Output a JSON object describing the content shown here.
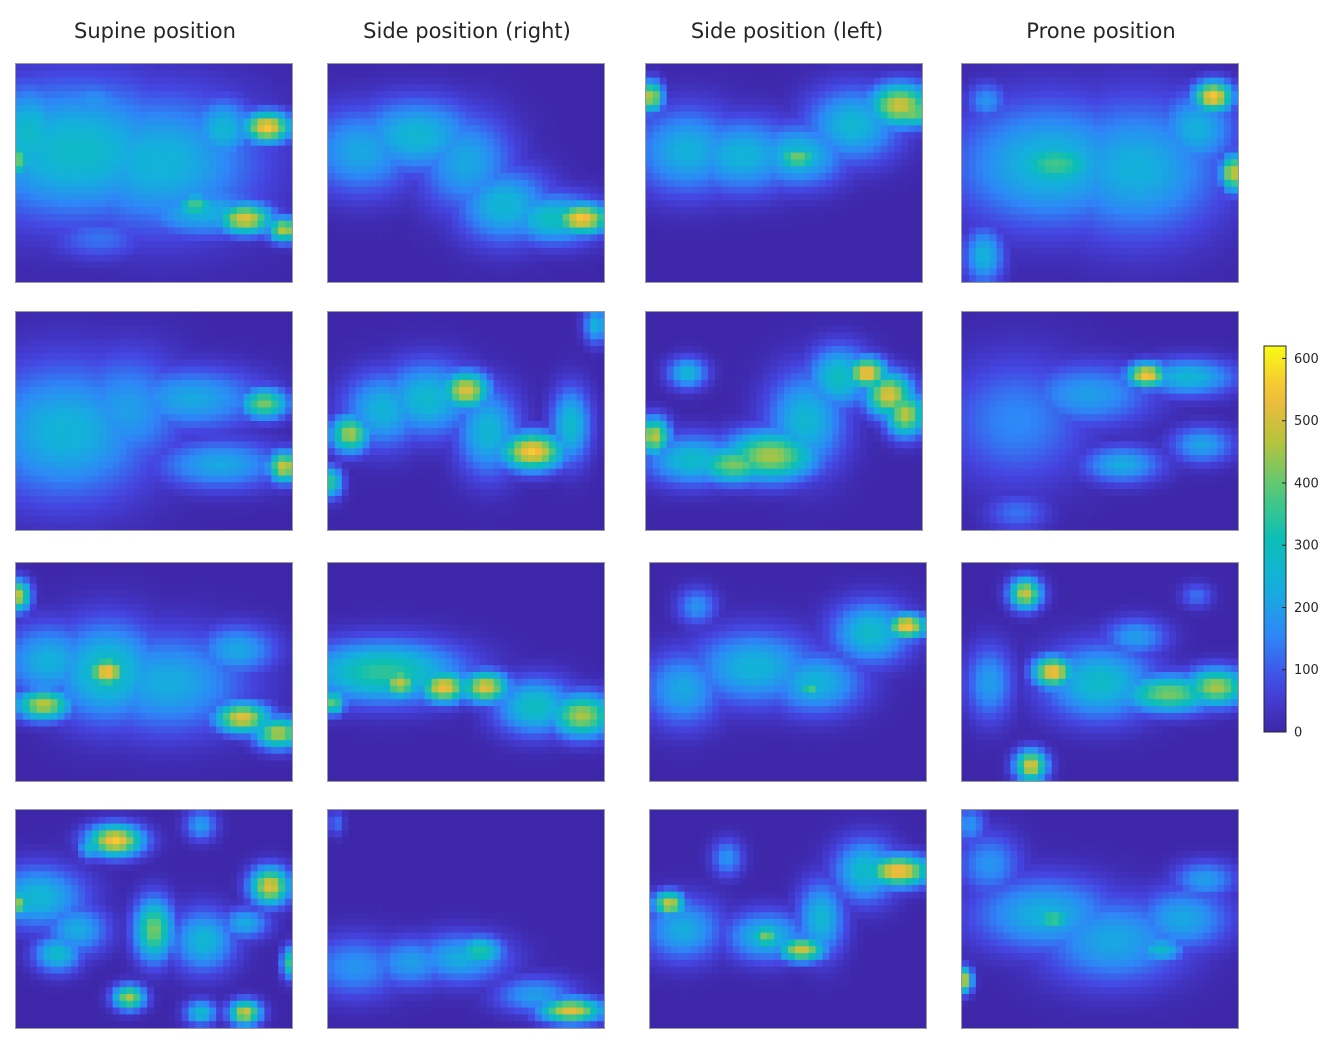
{
  "columns": [
    {
      "title": "Supine position"
    },
    {
      "title": "Side position (right)"
    },
    {
      "title": "Side position (left)"
    },
    {
      "title": "Prone position"
    }
  ],
  "chart_data": {
    "type": "heatmap",
    "colormap": "parula",
    "grid": "4 rows x 4 columns of pressure heatmaps",
    "colorbar": {
      "min": 0,
      "max": 620,
      "ticks": [
        0,
        100,
        200,
        300,
        400,
        500,
        600
      ],
      "tick_labels": [
        "0",
        "100",
        "200",
        "300",
        "400",
        "500",
        "600"
      ],
      "placement": "right"
    },
    "panels": [
      {
        "row": 1,
        "col": 1,
        "column_title": "Supine position",
        "base": 0,
        "blobs": [
          [
            0.28,
            0.18,
            0.1,
            0.08,
            180
          ],
          [
            0.05,
            0.32,
            0.1,
            0.16,
            280
          ],
          [
            0.22,
            0.4,
            0.28,
            0.22,
            280
          ],
          [
            0.52,
            0.45,
            0.25,
            0.22,
            250
          ],
          [
            0.75,
            0.3,
            0.08,
            0.1,
            260
          ],
          [
            0.91,
            0.29,
            0.06,
            0.05,
            560
          ],
          [
            0.68,
            0.68,
            0.16,
            0.08,
            240
          ],
          [
            0.83,
            0.71,
            0.07,
            0.05,
            520
          ],
          [
            0.97,
            0.76,
            0.04,
            0.04,
            480
          ],
          [
            0.65,
            0.65,
            0.05,
            0.04,
            380
          ],
          [
            0.3,
            0.8,
            0.12,
            0.07,
            130
          ],
          [
            0.0,
            0.44,
            0.04,
            0.06,
            420
          ]
        ]
      },
      {
        "row": 1,
        "col": 2,
        "column_title": "Side position (right)",
        "base": 0,
        "blobs": [
          [
            0.12,
            0.4,
            0.14,
            0.14,
            220
          ],
          [
            0.32,
            0.33,
            0.16,
            0.12,
            260
          ],
          [
            0.5,
            0.45,
            0.12,
            0.16,
            220
          ],
          [
            0.64,
            0.65,
            0.12,
            0.12,
            260
          ],
          [
            0.82,
            0.71,
            0.12,
            0.08,
            300
          ],
          [
            0.92,
            0.71,
            0.07,
            0.05,
            560
          ]
        ]
      },
      {
        "row": 1,
        "col": 3,
        "column_title": "Side position (left)",
        "base": 0,
        "blobs": [
          [
            0.02,
            0.15,
            0.03,
            0.05,
            480
          ],
          [
            0.15,
            0.4,
            0.14,
            0.14,
            240
          ],
          [
            0.35,
            0.42,
            0.15,
            0.12,
            250
          ],
          [
            0.55,
            0.42,
            0.12,
            0.1,
            270
          ],
          [
            0.55,
            0.43,
            0.06,
            0.04,
            420
          ],
          [
            0.75,
            0.28,
            0.12,
            0.12,
            260
          ],
          [
            0.92,
            0.19,
            0.08,
            0.07,
            500
          ],
          [
            0.97,
            0.22,
            0.04,
            0.05,
            440
          ]
        ]
      },
      {
        "row": 1,
        "col": 4,
        "column_title": "Prone position",
        "base": 0,
        "blobs": [
          [
            0.09,
            0.17,
            0.05,
            0.06,
            180
          ],
          [
            0.32,
            0.46,
            0.24,
            0.2,
            260
          ],
          [
            0.34,
            0.46,
            0.12,
            0.08,
            370
          ],
          [
            0.63,
            0.48,
            0.22,
            0.22,
            240
          ],
          [
            0.85,
            0.3,
            0.1,
            0.12,
            240
          ],
          [
            0.91,
            0.15,
            0.05,
            0.05,
            560
          ],
          [
            0.98,
            0.5,
            0.03,
            0.06,
            500
          ],
          [
            0.08,
            0.88,
            0.05,
            0.09,
            250
          ]
        ]
      },
      {
        "row": 2,
        "col": 1,
        "column_title": "Supine position",
        "base": 0,
        "blobs": [
          [
            0.18,
            0.55,
            0.22,
            0.22,
            250
          ],
          [
            0.4,
            0.45,
            0.15,
            0.18,
            200
          ],
          [
            0.64,
            0.4,
            0.18,
            0.1,
            220
          ],
          [
            0.9,
            0.42,
            0.06,
            0.05,
            420
          ],
          [
            0.74,
            0.7,
            0.16,
            0.08,
            220
          ],
          [
            0.97,
            0.71,
            0.04,
            0.05,
            500
          ]
        ]
      },
      {
        "row": 2,
        "col": 2,
        "column_title": "Side position (right)",
        "base": 0,
        "blobs": [
          [
            0.08,
            0.56,
            0.05,
            0.06,
            460
          ],
          [
            0.2,
            0.45,
            0.1,
            0.12,
            250
          ],
          [
            0.36,
            0.4,
            0.12,
            0.12,
            270
          ],
          [
            0.5,
            0.36,
            0.06,
            0.06,
            520
          ],
          [
            0.58,
            0.55,
            0.08,
            0.14,
            260
          ],
          [
            0.74,
            0.64,
            0.08,
            0.06,
            560
          ],
          [
            0.88,
            0.52,
            0.05,
            0.12,
            280
          ],
          [
            0.97,
            0.06,
            0.03,
            0.06,
            250
          ],
          [
            0.01,
            0.78,
            0.03,
            0.05,
            350
          ]
        ]
      },
      {
        "row": 2,
        "col": 3,
        "column_title": "Side position (left)",
        "base": 0,
        "blobs": [
          [
            0.03,
            0.57,
            0.04,
            0.06,
            480
          ],
          [
            0.17,
            0.68,
            0.12,
            0.08,
            280
          ],
          [
            0.32,
            0.7,
            0.1,
            0.06,
            420
          ],
          [
            0.45,
            0.66,
            0.12,
            0.08,
            460
          ],
          [
            0.58,
            0.5,
            0.1,
            0.16,
            260
          ],
          [
            0.7,
            0.3,
            0.08,
            0.1,
            300
          ],
          [
            0.8,
            0.28,
            0.05,
            0.05,
            560
          ],
          [
            0.88,
            0.38,
            0.06,
            0.07,
            520
          ],
          [
            0.94,
            0.47,
            0.05,
            0.07,
            480
          ],
          [
            0.15,
            0.28,
            0.05,
            0.05,
            260
          ]
        ]
      },
      {
        "row": 2,
        "col": 4,
        "column_title": "Prone position",
        "base": 0,
        "blobs": [
          [
            0.2,
            0.5,
            0.18,
            0.2,
            160
          ],
          [
            0.46,
            0.38,
            0.16,
            0.1,
            200
          ],
          [
            0.67,
            0.29,
            0.05,
            0.04,
            560
          ],
          [
            0.82,
            0.3,
            0.12,
            0.06,
            260
          ],
          [
            0.58,
            0.7,
            0.1,
            0.06,
            230
          ],
          [
            0.87,
            0.61,
            0.08,
            0.06,
            210
          ],
          [
            0.2,
            0.92,
            0.08,
            0.06,
            130
          ]
        ]
      },
      {
        "row": 3,
        "col": 1,
        "column_title": "Supine position",
        "base": 0,
        "blobs": [
          [
            0.01,
            0.15,
            0.03,
            0.05,
            480
          ],
          [
            0.12,
            0.45,
            0.12,
            0.12,
            240
          ],
          [
            0.1,
            0.65,
            0.07,
            0.05,
            480
          ],
          [
            0.33,
            0.5,
            0.14,
            0.16,
            300
          ],
          [
            0.33,
            0.5,
            0.05,
            0.05,
            560
          ],
          [
            0.55,
            0.55,
            0.2,
            0.16,
            230
          ],
          [
            0.8,
            0.4,
            0.1,
            0.08,
            220
          ],
          [
            0.82,
            0.71,
            0.07,
            0.05,
            520
          ],
          [
            0.95,
            0.78,
            0.06,
            0.05,
            470
          ]
        ]
      },
      {
        "row": 3,
        "col": 2,
        "column_title": "Side position (right)",
        "base": 0,
        "blobs": [
          [
            0.2,
            0.5,
            0.2,
            0.1,
            350
          ],
          [
            0.26,
            0.55,
            0.05,
            0.05,
            480
          ],
          [
            0.42,
            0.57,
            0.06,
            0.05,
            540
          ],
          [
            0.57,
            0.57,
            0.06,
            0.05,
            520
          ],
          [
            0.75,
            0.66,
            0.1,
            0.09,
            300
          ],
          [
            0.92,
            0.7,
            0.08,
            0.07,
            460
          ],
          [
            0.02,
            0.64,
            0.03,
            0.04,
            400
          ]
        ]
      },
      {
        "row": 3,
        "col": 3,
        "column_title": "Side position (left)",
        "base": 0,
        "blobs": [
          [
            0.17,
            0.2,
            0.05,
            0.06,
            180
          ],
          [
            0.12,
            0.58,
            0.1,
            0.12,
            220
          ],
          [
            0.38,
            0.48,
            0.16,
            0.12,
            250
          ],
          [
            0.6,
            0.55,
            0.12,
            0.1,
            250
          ],
          [
            0.58,
            0.58,
            0.03,
            0.03,
            380
          ],
          [
            0.8,
            0.32,
            0.1,
            0.1,
            280
          ],
          [
            0.93,
            0.29,
            0.05,
            0.04,
            560
          ]
        ]
      },
      {
        "row": 3,
        "col": 4,
        "column_title": "Prone position",
        "base": 0,
        "blobs": [
          [
            0.23,
            0.14,
            0.04,
            0.05,
            500
          ],
          [
            0.1,
            0.55,
            0.06,
            0.12,
            200
          ],
          [
            0.33,
            0.5,
            0.05,
            0.05,
            560
          ],
          [
            0.5,
            0.55,
            0.14,
            0.12,
            280
          ],
          [
            0.63,
            0.34,
            0.08,
            0.06,
            200
          ],
          [
            0.75,
            0.6,
            0.12,
            0.06,
            420
          ],
          [
            0.92,
            0.57,
            0.08,
            0.06,
            460
          ],
          [
            0.85,
            0.15,
            0.04,
            0.04,
            130
          ],
          [
            0.25,
            0.93,
            0.04,
            0.05,
            520
          ]
        ]
      },
      {
        "row": 4,
        "col": 1,
        "column_title": "Supine position",
        "base": 0,
        "blobs": [
          [
            0.36,
            0.14,
            0.07,
            0.05,
            560
          ],
          [
            0.27,
            0.17,
            0.03,
            0.04,
            280
          ],
          [
            0.67,
            0.07,
            0.04,
            0.05,
            200
          ],
          [
            0.08,
            0.4,
            0.12,
            0.1,
            260
          ],
          [
            0.01,
            0.43,
            0.03,
            0.04,
            440
          ],
          [
            0.22,
            0.55,
            0.08,
            0.08,
            230
          ],
          [
            0.15,
            0.66,
            0.06,
            0.06,
            280
          ],
          [
            0.5,
            0.55,
            0.05,
            0.1,
            420
          ],
          [
            0.68,
            0.6,
            0.08,
            0.1,
            260
          ],
          [
            0.92,
            0.35,
            0.05,
            0.06,
            520
          ],
          [
            0.83,
            0.52,
            0.06,
            0.05,
            230
          ],
          [
            0.41,
            0.86,
            0.04,
            0.04,
            460
          ],
          [
            0.67,
            0.93,
            0.04,
            0.04,
            280
          ],
          [
            0.83,
            0.93,
            0.04,
            0.04,
            500
          ],
          [
            0.99,
            0.7,
            0.02,
            0.05,
            350
          ]
        ]
      },
      {
        "row": 4,
        "col": 2,
        "column_title": "Side position (right)",
        "base": 0,
        "blobs": [
          [
            0.1,
            0.72,
            0.12,
            0.1,
            180
          ],
          [
            0.3,
            0.7,
            0.1,
            0.08,
            200
          ],
          [
            0.48,
            0.68,
            0.12,
            0.08,
            230
          ],
          [
            0.55,
            0.65,
            0.06,
            0.05,
            340
          ],
          [
            0.75,
            0.85,
            0.1,
            0.06,
            200
          ],
          [
            0.88,
            0.92,
            0.08,
            0.04,
            520
          ],
          [
            0.03,
            0.06,
            0.02,
            0.04,
            130
          ]
        ]
      },
      {
        "row": 4,
        "col": 3,
        "column_title": "Side position (left)",
        "base": 0,
        "blobs": [
          [
            0.07,
            0.43,
            0.04,
            0.04,
            500
          ],
          [
            0.12,
            0.55,
            0.1,
            0.1,
            230
          ],
          [
            0.28,
            0.22,
            0.04,
            0.06,
            180
          ],
          [
            0.42,
            0.58,
            0.1,
            0.08,
            260
          ],
          [
            0.42,
            0.58,
            0.04,
            0.04,
            420
          ],
          [
            0.55,
            0.64,
            0.06,
            0.04,
            500
          ],
          [
            0.62,
            0.5,
            0.06,
            0.12,
            260
          ],
          [
            0.78,
            0.28,
            0.08,
            0.1,
            280
          ],
          [
            0.9,
            0.28,
            0.08,
            0.05,
            560
          ]
        ]
      },
      {
        "row": 4,
        "col": 4,
        "column_title": "Prone position",
        "base": 0,
        "blobs": [
          [
            0.03,
            0.07,
            0.04,
            0.06,
            180
          ],
          [
            0.1,
            0.25,
            0.08,
            0.1,
            180
          ],
          [
            0.3,
            0.48,
            0.18,
            0.12,
            240
          ],
          [
            0.33,
            0.5,
            0.05,
            0.04,
            380
          ],
          [
            0.55,
            0.6,
            0.18,
            0.14,
            220
          ],
          [
            0.8,
            0.5,
            0.12,
            0.1,
            220
          ],
          [
            0.88,
            0.32,
            0.08,
            0.06,
            200
          ],
          [
            0.72,
            0.64,
            0.06,
            0.04,
            280
          ],
          [
            0.01,
            0.78,
            0.02,
            0.04,
            480
          ]
        ]
      }
    ]
  }
}
